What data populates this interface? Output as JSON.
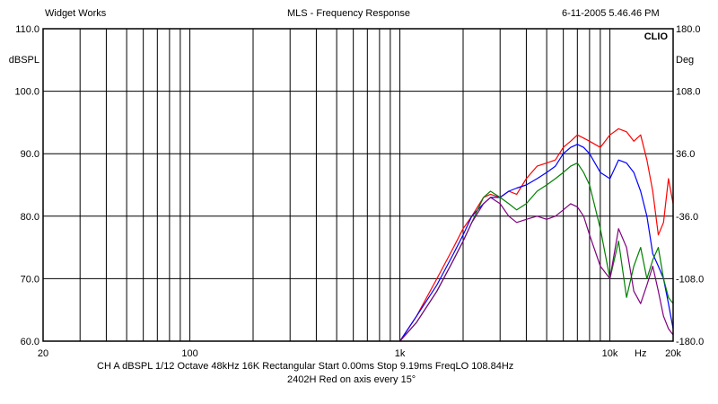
{
  "header": {
    "left": "Widget Works",
    "center": "MLS - Frequency Response",
    "right": "6-11-2005 5.46.46 PM"
  },
  "chart_data": {
    "type": "line",
    "title": "MLS - Frequency Response",
    "brand": "CLIO",
    "y_left_unit": "dBSPL",
    "y_right_unit": "Deg",
    "x_unit": "Hz",
    "xscale": "log",
    "xlim": [
      20,
      20000
    ],
    "ylim": [
      60,
      110
    ],
    "y2lim": [
      -180,
      180
    ],
    "grid": true,
    "y_ticks": [
      {
        "value": 110,
        "label": "110.0"
      },
      {
        "value": 100,
        "label": "100.0"
      },
      {
        "value": 90,
        "label": "90.0"
      },
      {
        "value": 80,
        "label": "80.0"
      },
      {
        "value": 70,
        "label": "70.0"
      },
      {
        "value": 60,
        "label": "60.0"
      }
    ],
    "y2_ticks": [
      {
        "value": 180,
        "label": "180.0"
      },
      {
        "value": 108,
        "label": "108.0"
      },
      {
        "value": 36,
        "label": "36.0"
      },
      {
        "value": -36,
        "label": "-36.0"
      },
      {
        "value": -108,
        "label": "-108.0"
      },
      {
        "value": -180,
        "label": "-180.0"
      }
    ],
    "x_tick_labels": [
      {
        "value": 20,
        "label": "20"
      },
      {
        "value": 100,
        "label": "100"
      },
      {
        "value": 1000,
        "label": "1k"
      },
      {
        "value": 10000,
        "label": "10k"
      },
      {
        "value": 20000,
        "label": "20k"
      }
    ],
    "x_gridlines": [
      30,
      40,
      50,
      60,
      70,
      80,
      90,
      100,
      200,
      300,
      400,
      500,
      600,
      700,
      800,
      900,
      1000,
      2000,
      3000,
      4000,
      5000,
      6000,
      7000,
      8000,
      9000,
      10000
    ],
    "series": [
      {
        "color": "#ff0000",
        "x": [
          1000,
          1200,
          1500,
          1800,
          2000,
          2200,
          2500,
          2700,
          3000,
          3300,
          3600,
          4000,
          4500,
          5000,
          5500,
          6000,
          6500,
          7000,
          7500,
          8000,
          9000,
          10000,
          11000,
          12000,
          13000,
          14000,
          15000,
          16000,
          17000,
          18000,
          19000,
          20000
        ],
        "y": [
          60,
          64,
          70,
          75,
          78,
          80,
          83,
          83.5,
          83,
          84,
          83.5,
          86,
          88,
          88.5,
          89,
          91,
          92,
          93,
          92.5,
          92,
          91,
          93,
          94,
          93.5,
          92,
          93,
          89,
          84,
          77,
          79,
          86,
          82
        ]
      },
      {
        "color": "#0000ff",
        "x": [
          1000,
          1200,
          1500,
          1800,
          2000,
          2200,
          2500,
          2700,
          3000,
          3300,
          3600,
          4000,
          4500,
          5000,
          5500,
          6000,
          6500,
          7000,
          7500,
          8000,
          9000,
          10000,
          11000,
          12000,
          13000,
          14000,
          15000,
          16000,
          17000,
          18000,
          19000,
          20000
        ],
        "y": [
          60,
          64,
          69,
          74,
          77,
          80,
          82,
          83,
          83,
          84,
          84.5,
          85,
          86,
          87,
          88,
          90,
          91,
          91.5,
          91,
          90,
          87,
          86,
          89,
          88.5,
          87,
          84,
          80,
          74,
          72,
          70,
          66,
          62
        ]
      },
      {
        "color": "#008000",
        "x": [
          1000,
          1200,
          1500,
          1800,
          2000,
          2200,
          2500,
          2700,
          3000,
          3300,
          3600,
          4000,
          4500,
          5000,
          5500,
          6000,
          6500,
          7000,
          7500,
          8000,
          9000,
          10000,
          11000,
          12000,
          13000,
          14000,
          15000,
          16000,
          17000,
          18000,
          19000,
          20000
        ],
        "y": [
          60,
          63,
          68,
          73,
          76,
          79,
          83,
          84,
          83,
          82,
          81,
          82,
          84,
          85,
          86,
          87,
          88,
          88.5,
          87,
          85,
          78,
          70,
          76,
          67,
          72,
          75,
          70,
          73,
          75,
          70,
          67,
          66
        ]
      },
      {
        "color": "#800080",
        "x": [
          1000,
          1200,
          1500,
          1800,
          2000,
          2200,
          2500,
          2700,
          3000,
          3300,
          3600,
          4000,
          4500,
          5000,
          5500,
          6000,
          6500,
          7000,
          7500,
          8000,
          9000,
          10000,
          11000,
          12000,
          13000,
          14000,
          15000,
          16000,
          17000,
          18000,
          19000,
          20000
        ],
        "y": [
          60,
          63,
          68,
          73,
          76,
          79,
          82,
          83,
          82,
          80,
          79,
          79.5,
          80,
          79.5,
          80,
          81,
          82,
          81.5,
          80,
          77,
          72,
          70,
          78,
          75,
          68,
          66,
          69,
          72,
          68,
          64,
          62,
          61
        ]
      }
    ]
  },
  "footer": {
    "line1": "CH A   dBSPL   1/12 Octave   48kHz   16K   Rectangular   Start 0.00ms   Stop 9.19ms   FreqLO 108.84Hz",
    "line2": "2402H Red on axis every 15°"
  }
}
